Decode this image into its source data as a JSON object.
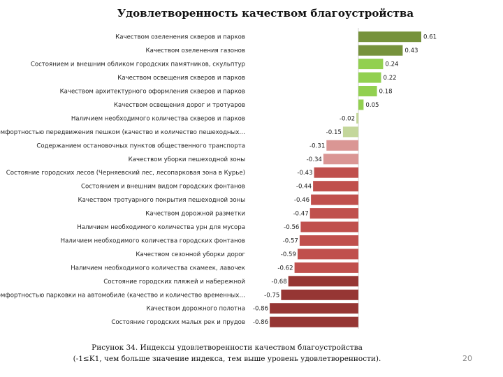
{
  "chart_data": {
    "type": "bar",
    "orientation": "horizontal",
    "title": "Удовлетворенность качеством благоустройства",
    "xlim": [
      -0.9,
      0.65
    ],
    "grid": false,
    "categories": [
      "Качеством озеленения скверов и парков",
      "Качеством озеленения газонов",
      "Состоянием и внешним обликом городских памятников, скульптур",
      "Качеством освещения скверов и парков",
      "Качеством архитектурного оформления скверов и парков",
      "Качеством освещения дорог и тротуаров",
      "Наличием необходимого количества скверов и парков",
      "Комфортностью передвижения пешком (качество и количество пешеходных…",
      "Содержанием остановочных пунктов общественного транспорта",
      "Качеством уборки пешеходной зоны",
      "Состояние городских лесов (Черняевский лес, лесопарковая зона в Курье)",
      "Состоянием и внешним видом городских фонтанов",
      "Качеством тротуарного покрытия пешеходной зоны",
      "Качеством дорожной разметки",
      "Наличием необходимого количества урн для мусора",
      "Наличием необходимого количества городских фонтанов",
      "Качеством сезонной уборки дорог",
      "Наличием необходимого количества скамеек, лавочек",
      "Состояние городских пляжей и набережной",
      "Комфортностью парковки на автомобиле (качество и количество временных…",
      "Качеством дорожного полотна",
      "Состояние городских малых рек и прудов"
    ],
    "values": [
      0.61,
      0.43,
      0.24,
      0.22,
      0.18,
      0.05,
      -0.02,
      -0.15,
      -0.31,
      -0.34,
      -0.43,
      -0.44,
      -0.46,
      -0.47,
      -0.56,
      -0.57,
      -0.59,
      -0.62,
      -0.68,
      -0.75,
      -0.86,
      -0.86
    ],
    "value_labels": [
      "0.61",
      "0.43",
      "0.24",
      "0.22",
      "0.18",
      "0.05",
      "-0.02",
      "-0.15",
      "-0.31",
      "-0.34",
      "-0.43",
      "-0.44",
      "-0.46",
      "-0.47",
      "-0.56",
      "-0.57",
      "-0.59",
      "-0.62",
      "-0.68",
      "-0.75",
      "-0.86",
      "-0.86"
    ],
    "colors": {
      "strong_positive": "#76923c",
      "positive": "#92d050",
      "slight_negative": "#c4d79b",
      "light_negative": "#da9694",
      "medium_negative": "#c0504d",
      "strong_negative": "#963634"
    }
  },
  "caption": {
    "line1": "Рисунок 34. Индексы удовлетворенности качеством благоустройства",
    "line2": "(-1≤K1, чем больше значение индекса, тем выше уровень удовлетворенности)."
  },
  "page_number": "20"
}
